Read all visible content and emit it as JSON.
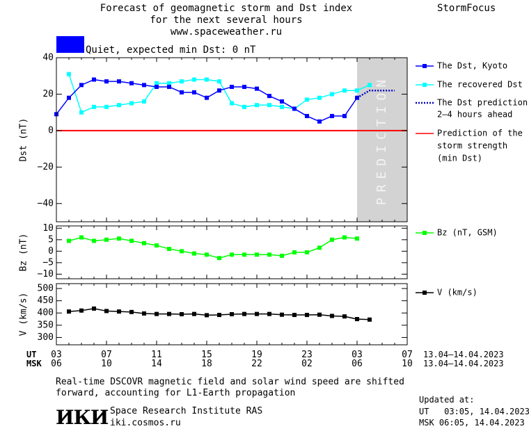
{
  "header": {
    "title_line1": "Forecast of geomagnetic storm and Dst index",
    "title_line2": "for the next several hours",
    "url": "www.spaceweather.ru",
    "brand": "StormFocus"
  },
  "status": {
    "label": "Quiet, expected min Dst: 0 nT",
    "color": "#0000ff"
  },
  "prediction_band_text": "PREDICTION",
  "time_axis": {
    "ut_label": "UT",
    "msk_label": "MSK",
    "ut_ticks": [
      "03",
      "07",
      "11",
      "15",
      "19",
      "23",
      "03",
      "07"
    ],
    "msk_ticks": [
      "06",
      "10",
      "14",
      "18",
      "22",
      "02",
      "06",
      "10"
    ],
    "ut_range": "13.04–14.04.2023",
    "msk_range": "13.04–14.04.2023"
  },
  "legend": {
    "dst_kyoto": "The Dst, Kyoto",
    "recovered": "The recovered Dst",
    "prediction_1": "The Dst prediction",
    "prediction_2": "2–4 hours ahead",
    "storm_1": "Prediction of the",
    "storm_2": "storm strength",
    "storm_3": "(min Dst)",
    "bz": "Bz (nT, GSM)",
    "v": "V (km/s)"
  },
  "footer": {
    "note_1": "Real-time DSCOVR magnetic field and solar wind speed are shifted",
    "note_2": "forward, accounting for L1-Earth propagation",
    "institute": "Space Research Institute RAS",
    "site": "iki.cosmos.ru",
    "logo_text": "ИКИ",
    "updated_label": "Updated at:",
    "updated_ut": "UT   03:05, 14.04.2023",
    "updated_msk": "MSK 06:05, 14.04.2023"
  },
  "colors": {
    "dst_kyoto": "#0000ff",
    "recovered": "#00ffff",
    "prediction": "#0000c0",
    "storm_line": "#ff0000",
    "bz": "#00ff00",
    "v": "#000000",
    "prediction_band": "#d3d3d3"
  },
  "chart_data": [
    {
      "type": "line",
      "title": "",
      "ylabel": "Dst (nT)",
      "xlabel": "UT hour (13.04–14.04.2023)",
      "xlim": [
        3,
        31
      ],
      "ylim": [
        -50,
        40
      ],
      "yticks": [
        40,
        20,
        0,
        -20,
        -40
      ],
      "prediction_start": 27,
      "series": [
        {
          "name": "The Dst, Kyoto",
          "x": [
            3,
            4,
            5,
            6,
            7,
            8,
            9,
            10,
            11,
            12,
            13,
            14,
            15,
            16,
            17,
            18,
            19,
            20,
            21,
            22,
            23,
            24,
            25,
            26,
            27
          ],
          "y": [
            9,
            18,
            25,
            28,
            27,
            27,
            26,
            25,
            24,
            24,
            21,
            21,
            18,
            22,
            24,
            24,
            23,
            19,
            16,
            12,
            8,
            5,
            8,
            8,
            18
          ]
        },
        {
          "name": "The recovered Dst",
          "x": [
            4,
            5,
            6,
            7,
            8,
            9,
            10,
            11,
            12,
            13,
            14,
            15,
            16,
            17,
            18,
            19,
            20,
            21,
            22,
            23,
            24,
            25,
            26,
            27,
            28
          ],
          "y": [
            31,
            10,
            13,
            13,
            14,
            15,
            16,
            26,
            26,
            27,
            28,
            28,
            27,
            15,
            13,
            14,
            14,
            13,
            12,
            17,
            18,
            20,
            22,
            22,
            25
          ]
        },
        {
          "name": "The Dst prediction 2–4 hours ahead",
          "x": [
            27,
            28,
            29,
            30
          ],
          "y": [
            18,
            22,
            22,
            22
          ]
        },
        {
          "name": "Prediction of the storm strength (min Dst)",
          "x": [
            3,
            31
          ],
          "y": [
            0,
            0
          ]
        }
      ]
    },
    {
      "type": "line",
      "ylabel": "Bz (nT)",
      "xlim": [
        3,
        31
      ],
      "ylim": [
        -12,
        11
      ],
      "yticks": [
        10,
        5,
        0,
        -5,
        -10
      ],
      "series": [
        {
          "name": "Bz (nT, GSM)",
          "x": [
            4,
            5,
            6,
            7,
            8,
            9,
            10,
            11,
            12,
            13,
            14,
            15,
            16,
            17,
            18,
            19,
            20,
            21,
            22,
            23,
            24,
            25,
            26,
            27,
            28
          ],
          "y": [
            4.5,
            6,
            4.5,
            5,
            5.5,
            4.5,
            3.5,
            2.5,
            1,
            0,
            -1,
            -1.5,
            -3,
            -1.5,
            -1.5,
            -1.5,
            -1.5,
            -2,
            -0.5,
            -0.5,
            1.5,
            5,
            6,
            5.5,
            null
          ]
        }
      ]
    },
    {
      "type": "line",
      "ylabel": "V (km/s)",
      "xlim": [
        3,
        31
      ],
      "ylim": [
        270,
        520
      ],
      "yticks": [
        500,
        450,
        400,
        350,
        300
      ],
      "series": [
        {
          "name": "V (km/s)",
          "x": [
            4,
            5,
            6,
            7,
            8,
            9,
            10,
            11,
            12,
            13,
            14,
            15,
            16,
            17,
            18,
            19,
            20,
            21,
            22,
            23,
            24,
            25,
            26,
            27,
            28
          ],
          "y": [
            406,
            410,
            418,
            408,
            406,
            404,
            398,
            396,
            396,
            395,
            396,
            391,
            392,
            395,
            396,
            396,
            396,
            393,
            392,
            392,
            393,
            388,
            386,
            375,
            373
          ]
        }
      ]
    }
  ]
}
